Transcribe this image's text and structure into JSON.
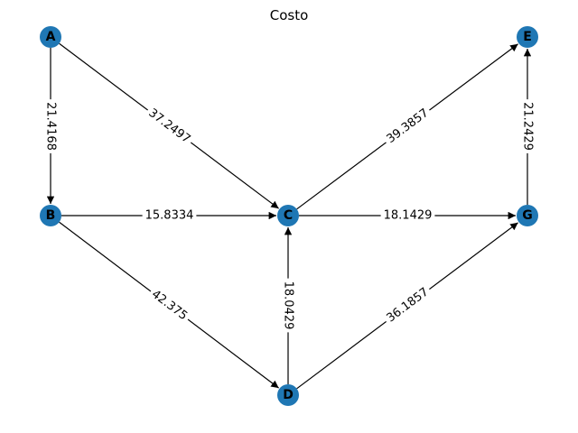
{
  "title": "Costo",
  "node_color": "#1f77b4",
  "nodes": [
    {
      "id": "A",
      "label": "A"
    },
    {
      "id": "B",
      "label": "B"
    },
    {
      "id": "C",
      "label": "C"
    },
    {
      "id": "D",
      "label": "D"
    },
    {
      "id": "E",
      "label": "E"
    },
    {
      "id": "G",
      "label": "G"
    }
  ],
  "edges": [
    {
      "from": "A",
      "to": "B",
      "label": "21.4168"
    },
    {
      "from": "A",
      "to": "C",
      "label": "37.2497"
    },
    {
      "from": "B",
      "to": "C",
      "label": "15.8334"
    },
    {
      "from": "B",
      "to": "D",
      "label": "42.375"
    },
    {
      "from": "D",
      "to": "C",
      "label": "18.0429"
    },
    {
      "from": "C",
      "to": "E",
      "label": "39.3857"
    },
    {
      "from": "C",
      "to": "G",
      "label": "18.1429"
    },
    {
      "from": "D",
      "to": "G",
      "label": "36.1857"
    },
    {
      "from": "G",
      "to": "E",
      "label": "21.2429"
    }
  ]
}
